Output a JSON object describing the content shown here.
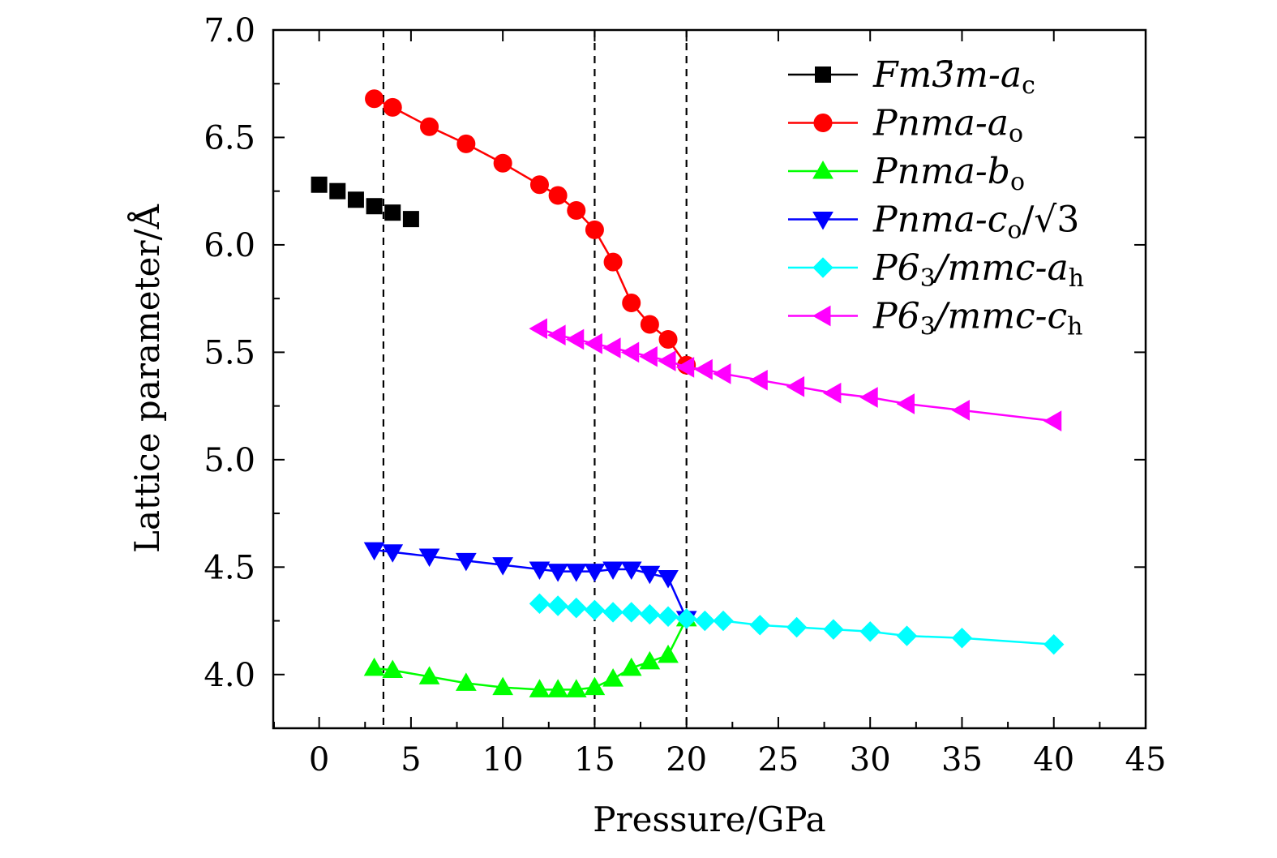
{
  "chart_data": {
    "type": "line",
    "title": "",
    "xlabel": "Pressure/GPa",
    "ylabel": "Lattice parameter/Å",
    "xlim": [
      -2.5,
      45
    ],
    "ylim": [
      3.75,
      7.0
    ],
    "xticks": [
      0,
      5,
      10,
      15,
      20,
      25,
      30,
      35,
      40,
      45
    ],
    "xtick_labels": [
      "0",
      "5",
      "10",
      "15",
      "20",
      "25",
      "30",
      "35",
      "40",
      "45"
    ],
    "yticks": [
      4.0,
      4.5,
      5.0,
      5.5,
      6.0,
      6.5,
      7.0
    ],
    "ytick_labels": [
      "4.0",
      "4.5",
      "5.0",
      "5.5",
      "6.0",
      "6.5",
      "7.0"
    ],
    "vlines": [
      3.5,
      15,
      20
    ],
    "grid": false,
    "legend_position": "top-right",
    "series": [
      {
        "name": "Fm3̄m-ac",
        "legend_main": "Fm3̄m-a",
        "legend_sub": "c",
        "color": "#000000",
        "marker": "square",
        "x": [
          0,
          1,
          2,
          3,
          4,
          5
        ],
        "y": [
          6.28,
          6.25,
          6.21,
          6.18,
          6.15,
          6.12
        ]
      },
      {
        "name": "Pnma-ao",
        "legend_main": "Pnma-a",
        "legend_sub": "o",
        "color": "#ff0000",
        "marker": "circle",
        "x": [
          3,
          4,
          6,
          8,
          10,
          12,
          13,
          14,
          15,
          16,
          17,
          18,
          19,
          20
        ],
        "y": [
          6.68,
          6.64,
          6.55,
          6.47,
          6.38,
          6.28,
          6.23,
          6.16,
          6.07,
          5.92,
          5.73,
          5.63,
          5.56,
          5.44
        ]
      },
      {
        "name": "Pnma-bo",
        "legend_main": "Pnma-b",
        "legend_sub": "o",
        "color": "#00ff00",
        "marker": "triangle-up",
        "x": [
          3,
          4,
          6,
          8,
          10,
          12,
          13,
          14,
          15,
          16,
          17,
          18,
          19,
          20
        ],
        "y": [
          4.03,
          4.02,
          3.99,
          3.96,
          3.94,
          3.93,
          3.93,
          3.93,
          3.94,
          3.98,
          4.03,
          4.06,
          4.09,
          4.26
        ]
      },
      {
        "name": "Pnma-co/√3",
        "legend_main": "Pnma-c",
        "legend_sub": "o",
        "legend_suffix": "/√3",
        "color": "#0000ff",
        "marker": "triangle-down",
        "x": [
          3,
          4,
          6,
          8,
          10,
          12,
          13,
          14,
          15,
          16,
          17,
          18,
          19,
          20
        ],
        "y": [
          4.58,
          4.57,
          4.55,
          4.53,
          4.51,
          4.49,
          4.48,
          4.48,
          4.48,
          4.49,
          4.49,
          4.47,
          4.45,
          4.26
        ]
      },
      {
        "name": "P63/mmc-ah",
        "legend_main": "P6",
        "legend_sub": "3",
        "legend_mid": "/mmc-a",
        "legend_sub2": "h",
        "color": "#00ffff",
        "marker": "diamond",
        "x": [
          12,
          13,
          14,
          15,
          16,
          17,
          18,
          19,
          20,
          21,
          22,
          24,
          26,
          28,
          30,
          32,
          35,
          40
        ],
        "y": [
          4.33,
          4.32,
          4.31,
          4.3,
          4.29,
          4.29,
          4.28,
          4.27,
          4.26,
          4.25,
          4.25,
          4.23,
          4.22,
          4.21,
          4.2,
          4.18,
          4.17,
          4.14
        ]
      },
      {
        "name": "P63/mmc-ch",
        "legend_main": "P6",
        "legend_sub": "3",
        "legend_mid": "/mmc-c",
        "legend_sub2": "h",
        "color": "#ff00ff",
        "marker": "triangle-left",
        "x": [
          12,
          13,
          14,
          15,
          16,
          17,
          18,
          19,
          20,
          21,
          22,
          24,
          26,
          28,
          30,
          32,
          35,
          40
        ],
        "y": [
          5.61,
          5.58,
          5.56,
          5.54,
          5.52,
          5.5,
          5.48,
          5.46,
          5.43,
          5.42,
          5.4,
          5.37,
          5.34,
          5.31,
          5.29,
          5.26,
          5.23,
          5.18
        ]
      }
    ]
  }
}
